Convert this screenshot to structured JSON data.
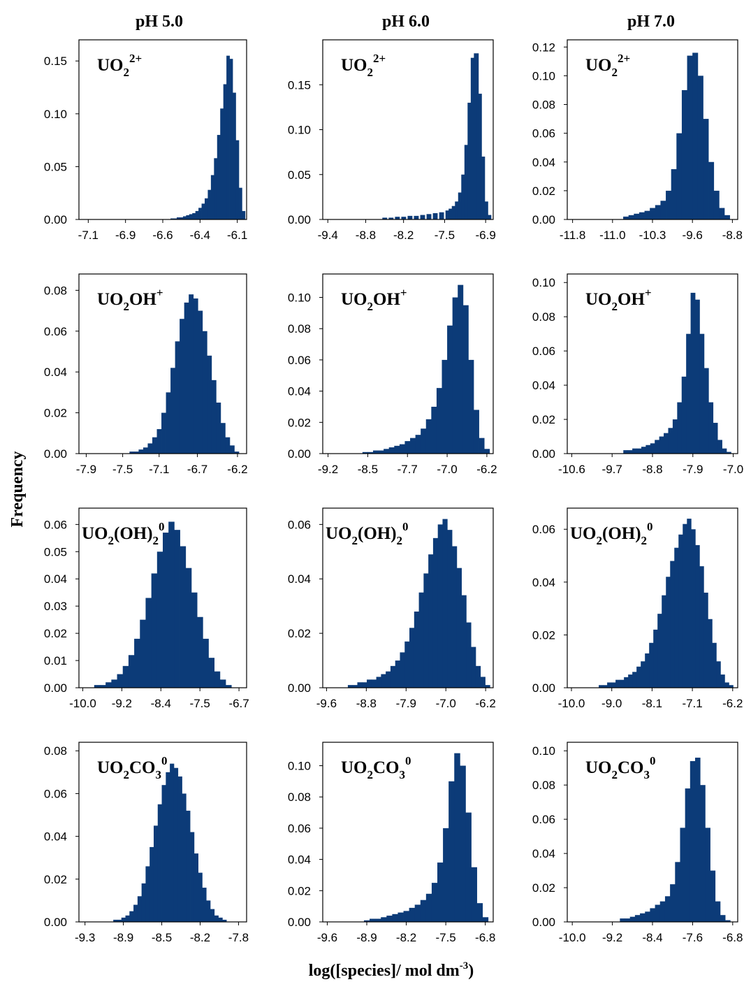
{
  "figure": {
    "column_titles": [
      "pH 5.0",
      "pH 6.0",
      "pH 7.0"
    ],
    "ylabel": "Frequency",
    "xlabel": "log([species]/ mol dm",
    "xlabel_sup": "-3",
    "xlabel_close": ")",
    "bar_color": "#0c3b78"
  },
  "chart_data": [
    {
      "type": "bar",
      "row": 0,
      "col": 0,
      "label": {
        "base": "UO",
        "s1": "2",
        "s2": "2+"
      },
      "xticks": [
        "-7.1",
        "-6.9",
        "-6.6",
        "-6.4",
        "-6.1"
      ],
      "xtick_values": [
        -7.1,
        -6.86,
        -6.62,
        -6.38,
        -6.14
      ],
      "xlim": [
        -7.16,
        -6.08
      ],
      "yticks": [
        "0.00",
        "0.05",
        "0.10",
        "0.15"
      ],
      "ytick_values": [
        0,
        0.05,
        0.1,
        0.15
      ],
      "ylim": [
        0,
        0.17
      ],
      "x": [
        -6.56,
        -6.54,
        -6.52,
        -6.5,
        -6.48,
        -6.46,
        -6.44,
        -6.42,
        -6.4,
        -6.38,
        -6.36,
        -6.34,
        -6.32,
        -6.3,
        -6.28,
        -6.26,
        -6.24,
        -6.22,
        -6.2,
        -6.18,
        -6.16,
        -6.14,
        -6.12,
        -6.1
      ],
      "values": [
        0.001,
        0.001,
        0.002,
        0.002,
        0.003,
        0.004,
        0.005,
        0.006,
        0.008,
        0.011,
        0.015,
        0.02,
        0.028,
        0.042,
        0.058,
        0.08,
        0.105,
        0.128,
        0.155,
        0.152,
        0.12,
        0.075,
        0.03,
        0.008
      ]
    },
    {
      "type": "bar",
      "row": 0,
      "col": 1,
      "label": {
        "base": "UO",
        "s1": "2",
        "s2": "2+"
      },
      "xticks": [
        "-9.4",
        "-8.8",
        "-8.2",
        "-7.5",
        "-6.9"
      ],
      "xtick_values": [
        -9.4,
        -8.8,
        -8.2,
        -7.55,
        -6.9
      ],
      "xlim": [
        -9.48,
        -6.78
      ],
      "yticks": [
        "0.00",
        "0.05",
        "0.10",
        "0.15"
      ],
      "ytick_values": [
        0,
        0.05,
        0.1,
        0.15
      ],
      "ylim": [
        0,
        0.2
      ],
      "x": [
        -8.5,
        -8.4,
        -8.3,
        -8.2,
        -8.1,
        -8.0,
        -7.9,
        -7.8,
        -7.7,
        -7.6,
        -7.5,
        -7.45,
        -7.4,
        -7.35,
        -7.3,
        -7.25,
        -7.2,
        -7.15,
        -7.1,
        -7.05,
        -7.0,
        -6.95,
        -6.9,
        -6.85
      ],
      "values": [
        0.002,
        0.002,
        0.003,
        0.003,
        0.004,
        0.004,
        0.005,
        0.006,
        0.007,
        0.008,
        0.01,
        0.012,
        0.015,
        0.02,
        0.03,
        0.05,
        0.083,
        0.13,
        0.18,
        0.185,
        0.14,
        0.07,
        0.02,
        0.005
      ]
    },
    {
      "type": "bar",
      "row": 0,
      "col": 2,
      "label": {
        "base": "UO",
        "s1": "2",
        "s2": "2+"
      },
      "xticks": [
        "-11.8",
        "-11.0",
        "-10.3",
        "-9.6",
        "-8.8"
      ],
      "xtick_values": [
        -11.8,
        -11.05,
        -10.3,
        -9.55,
        -8.8
      ],
      "xlim": [
        -11.9,
        -8.7
      ],
      "yticks": [
        "0.00",
        "0.02",
        "0.04",
        "0.06",
        "0.08",
        "0.10",
        "0.12"
      ],
      "ytick_values": [
        0,
        0.02,
        0.04,
        0.06,
        0.08,
        0.1,
        0.12
      ],
      "ylim": [
        0,
        0.125
      ],
      "x": [
        -10.8,
        -10.7,
        -10.6,
        -10.5,
        -10.4,
        -10.3,
        -10.2,
        -10.1,
        -10.0,
        -9.9,
        -9.8,
        -9.7,
        -9.6,
        -9.5,
        -9.4,
        -9.3,
        -9.2,
        -9.1,
        -9.0,
        -8.9
      ],
      "values": [
        0.002,
        0.003,
        0.004,
        0.005,
        0.006,
        0.008,
        0.01,
        0.013,
        0.02,
        0.035,
        0.06,
        0.09,
        0.114,
        0.116,
        0.1,
        0.07,
        0.04,
        0.02,
        0.008,
        0.003
      ]
    },
    {
      "type": "bar",
      "row": 1,
      "col": 0,
      "label": {
        "base": "UO",
        "s1": "2",
        "mid": "OH",
        "s2": "+"
      },
      "xticks": [
        "-7.9",
        "-7.5",
        "-7.1",
        "-6.7",
        "-6.2"
      ],
      "xtick_values": [
        -7.9,
        -7.5,
        -7.1,
        -6.68,
        -6.24
      ],
      "xlim": [
        -7.98,
        -6.14
      ],
      "yticks": [
        "0.00",
        "0.02",
        "0.04",
        "0.06",
        "0.08"
      ],
      "ytick_values": [
        0,
        0.02,
        0.04,
        0.06,
        0.08
      ],
      "ylim": [
        0,
        0.088
      ],
      "x": [
        -7.4,
        -7.35,
        -7.3,
        -7.25,
        -7.2,
        -7.15,
        -7.1,
        -7.05,
        -7.0,
        -6.95,
        -6.9,
        -6.85,
        -6.8,
        -6.75,
        -6.7,
        -6.65,
        -6.6,
        -6.55,
        -6.5,
        -6.45,
        -6.4,
        -6.35,
        -6.3,
        -6.25
      ],
      "values": [
        0.001,
        0.001,
        0.002,
        0.003,
        0.005,
        0.008,
        0.012,
        0.02,
        0.03,
        0.042,
        0.055,
        0.066,
        0.074,
        0.078,
        0.076,
        0.07,
        0.06,
        0.048,
        0.036,
        0.025,
        0.015,
        0.008,
        0.004,
        0.001
      ]
    },
    {
      "type": "bar",
      "row": 1,
      "col": 1,
      "label": {
        "base": "UO",
        "s1": "2",
        "mid": "OH",
        "s2": "+"
      },
      "xticks": [
        "-9.2",
        "-8.5",
        "-7.7",
        "-7.0",
        "-6.2"
      ],
      "xtick_values": [
        -9.2,
        -8.45,
        -7.7,
        -6.95,
        -6.2
      ],
      "xlim": [
        -9.3,
        -6.08
      ],
      "yticks": [
        "0.00",
        "0.02",
        "0.04",
        "0.06",
        "0.08",
        "0.10"
      ],
      "ytick_values": [
        0,
        0.02,
        0.04,
        0.06,
        0.08,
        0.1
      ],
      "ylim": [
        0,
        0.115
      ],
      "x": [
        -8.5,
        -8.4,
        -8.3,
        -8.2,
        -8.1,
        -8.0,
        -7.9,
        -7.8,
        -7.7,
        -7.6,
        -7.5,
        -7.4,
        -7.3,
        -7.2,
        -7.1,
        -7.0,
        -6.9,
        -6.8,
        -6.7,
        -6.6,
        -6.5,
        -6.4,
        -6.3,
        -6.2
      ],
      "values": [
        0.001,
        0.001,
        0.002,
        0.002,
        0.003,
        0.004,
        0.005,
        0.006,
        0.008,
        0.01,
        0.012,
        0.016,
        0.022,
        0.03,
        0.042,
        0.06,
        0.082,
        0.1,
        0.108,
        0.095,
        0.06,
        0.028,
        0.01,
        0.003
      ]
    },
    {
      "type": "bar",
      "row": 1,
      "col": 2,
      "label": {
        "base": "UO",
        "s1": "2",
        "mid": "OH",
        "s2": "+"
      },
      "xticks": [
        "-10.6",
        "-9.7",
        "-8.8",
        "-7.9",
        "-7.0"
      ],
      "xtick_values": [
        -10.6,
        -9.7,
        -8.8,
        -7.9,
        -7.0
      ],
      "xlim": [
        -10.7,
        -6.9
      ],
      "yticks": [
        "0.00",
        "0.02",
        "0.04",
        "0.06",
        "0.08",
        "0.10"
      ],
      "ytick_values": [
        0,
        0.02,
        0.04,
        0.06,
        0.08,
        0.1
      ],
      "ylim": [
        0,
        0.105
      ],
      "x": [
        -9.4,
        -9.3,
        -9.2,
        -9.1,
        -9.0,
        -8.9,
        -8.8,
        -8.7,
        -8.6,
        -8.5,
        -8.4,
        -8.3,
        -8.2,
        -8.1,
        -8.0,
        -7.9,
        -7.8,
        -7.7,
        -7.6,
        -7.5,
        -7.4,
        -7.3,
        -7.2,
        -7.1
      ],
      "values": [
        0.002,
        0.002,
        0.003,
        0.003,
        0.004,
        0.005,
        0.006,
        0.008,
        0.01,
        0.012,
        0.015,
        0.02,
        0.03,
        0.045,
        0.07,
        0.094,
        0.09,
        0.07,
        0.05,
        0.03,
        0.018,
        0.008,
        0.003,
        0.001
      ]
    },
    {
      "type": "bar",
      "row": 2,
      "col": 0,
      "label": {
        "base": "UO",
        "s1": "2",
        "mid": "(OH)",
        "s2": "2",
        "s3": "0"
      },
      "xticks": [
        "-10.0",
        "-9.2",
        "-8.4",
        "-7.5",
        "-6.7"
      ],
      "xtick_values": [
        -10.0,
        -9.18,
        -8.36,
        -7.54,
        -6.72
      ],
      "xlim": [
        -10.08,
        -6.56
      ],
      "yticks": [
        "0.00",
        "0.01",
        "0.02",
        "0.03",
        "0.04",
        "0.05",
        "0.06"
      ],
      "ytick_values": [
        0,
        0.01,
        0.02,
        0.03,
        0.04,
        0.05,
        0.06
      ],
      "ylim": [
        0,
        0.066
      ],
      "x": [
        -9.7,
        -9.58,
        -9.46,
        -9.34,
        -9.22,
        -9.1,
        -8.98,
        -8.86,
        -8.74,
        -8.62,
        -8.5,
        -8.38,
        -8.26,
        -8.14,
        -8.02,
        -7.9,
        -7.78,
        -7.66,
        -7.54,
        -7.42,
        -7.3,
        -7.18,
        -7.06,
        -6.94
      ],
      "values": [
        0.001,
        0.001,
        0.002,
        0.003,
        0.005,
        0.008,
        0.012,
        0.018,
        0.025,
        0.033,
        0.042,
        0.05,
        0.057,
        0.061,
        0.058,
        0.052,
        0.044,
        0.035,
        0.026,
        0.018,
        0.011,
        0.006,
        0.003,
        0.001
      ]
    },
    {
      "type": "bar",
      "row": 2,
      "col": 1,
      "label": {
        "base": "UO",
        "s1": "2",
        "mid": "(OH)",
        "s2": "2",
        "s3": "0"
      },
      "xticks": [
        "-9.6",
        "-8.8",
        "-7.9",
        "-7.0",
        "-6.2"
      ],
      "xtick_values": [
        -9.6,
        -8.76,
        -7.92,
        -7.08,
        -6.24
      ],
      "xlim": [
        -9.68,
        -6.08
      ],
      "yticks": [
        "0.00",
        "0.02",
        "0.04",
        "0.06"
      ],
      "ytick_values": [
        0,
        0.02,
        0.04,
        0.06
      ],
      "ylim": [
        0,
        0.066
      ],
      "x": [
        -9.1,
        -9.0,
        -8.9,
        -8.8,
        -8.7,
        -8.6,
        -8.5,
        -8.4,
        -8.3,
        -8.2,
        -8.1,
        -8.0,
        -7.9,
        -7.8,
        -7.7,
        -7.6,
        -7.5,
        -7.4,
        -7.3,
        -7.2,
        -7.1,
        -7.0,
        -6.9,
        -6.8,
        -6.7,
        -6.6,
        -6.5,
        -6.4,
        -6.3,
        -6.2
      ],
      "values": [
        0.001,
        0.001,
        0.002,
        0.002,
        0.003,
        0.003,
        0.004,
        0.005,
        0.006,
        0.008,
        0.01,
        0.013,
        0.017,
        0.022,
        0.028,
        0.035,
        0.042,
        0.049,
        0.055,
        0.06,
        0.062,
        0.058,
        0.052,
        0.044,
        0.034,
        0.024,
        0.015,
        0.008,
        0.004,
        0.001
      ]
    },
    {
      "type": "bar",
      "row": 2,
      "col": 2,
      "label": {
        "base": "UO",
        "s1": "2",
        "mid": "(OH)",
        "s2": "2",
        "s3": "0"
      },
      "xticks": [
        "-10.0",
        "-9.0",
        "-8.1",
        "-7.1",
        "-6.2"
      ],
      "xtick_values": [
        -10.0,
        -9.04,
        -8.08,
        -7.12,
        -6.16
      ],
      "xlim": [
        -10.1,
        -6.04
      ],
      "yticks": [
        "0.00",
        "0.02",
        "0.04",
        "0.06"
      ],
      "ytick_values": [
        0,
        0.02,
        0.04,
        0.06
      ],
      "ylim": [
        0,
        0.068
      ],
      "x": [
        -9.3,
        -9.2,
        -9.1,
        -9.0,
        -8.9,
        -8.8,
        -8.7,
        -8.6,
        -8.5,
        -8.4,
        -8.3,
        -8.2,
        -8.1,
        -8.0,
        -7.9,
        -7.8,
        -7.7,
        -7.6,
        -7.5,
        -7.4,
        -7.3,
        -7.2,
        -7.1,
        -7.0,
        -6.9,
        -6.8,
        -6.7,
        -6.6,
        -6.5,
        -6.4,
        -6.3,
        -6.2
      ],
      "values": [
        0.001,
        0.001,
        0.002,
        0.002,
        0.003,
        0.003,
        0.004,
        0.005,
        0.006,
        0.008,
        0.01,
        0.013,
        0.017,
        0.022,
        0.028,
        0.035,
        0.042,
        0.048,
        0.053,
        0.058,
        0.062,
        0.064,
        0.06,
        0.054,
        0.046,
        0.036,
        0.026,
        0.017,
        0.01,
        0.005,
        0.002,
        0.001
      ]
    },
    {
      "type": "bar",
      "row": 3,
      "col": 0,
      "label": {
        "base": "UO",
        "s1": "2",
        "mid": "CO",
        "s2": "3",
        "s3": "0"
      },
      "xticks": [
        "-9.3",
        "-8.9",
        "-8.5",
        "-8.2",
        "-7.8"
      ],
      "xtick_values": [
        -9.3,
        -8.92,
        -8.54,
        -8.16,
        -7.78
      ],
      "xlim": [
        -9.36,
        -7.7
      ],
      "yticks": [
        "0.00",
        "0.02",
        "0.04",
        "0.06",
        "0.08"
      ],
      "ytick_values": [
        0,
        0.02,
        0.04,
        0.06,
        0.08
      ],
      "ylim": [
        0,
        0.084
      ],
      "x": [
        -9.0,
        -8.96,
        -8.92,
        -8.88,
        -8.84,
        -8.8,
        -8.76,
        -8.72,
        -8.68,
        -8.64,
        -8.6,
        -8.56,
        -8.52,
        -8.48,
        -8.44,
        -8.4,
        -8.36,
        -8.32,
        -8.28,
        -8.24,
        -8.2,
        -8.16,
        -8.12,
        -8.08,
        -8.04,
        -8.0,
        -7.96,
        -7.92
      ],
      "values": [
        0.001,
        0.001,
        0.002,
        0.003,
        0.005,
        0.008,
        0.012,
        0.018,
        0.026,
        0.035,
        0.045,
        0.055,
        0.064,
        0.07,
        0.074,
        0.072,
        0.068,
        0.06,
        0.052,
        0.042,
        0.032,
        0.023,
        0.016,
        0.01,
        0.006,
        0.003,
        0.002,
        0.001
      ]
    },
    {
      "type": "bar",
      "row": 3,
      "col": 1,
      "label": {
        "base": "UO",
        "s1": "2",
        "mid": "CO",
        "s2": "3",
        "s3": "0"
      },
      "xticks": [
        "-9.6",
        "-8.9",
        "-8.2",
        "-7.5",
        "-6.8"
      ],
      "xtick_values": [
        -9.6,
        -8.9,
        -8.2,
        -7.5,
        -6.8
      ],
      "xlim": [
        -9.68,
        -6.66
      ],
      "yticks": [
        "0.00",
        "0.02",
        "0.04",
        "0.06",
        "0.08",
        "0.10"
      ],
      "ytick_values": [
        0,
        0.02,
        0.04,
        0.06,
        0.08,
        0.1
      ],
      "ylim": [
        0,
        0.115
      ],
      "x": [
        -8.9,
        -8.8,
        -8.7,
        -8.6,
        -8.5,
        -8.4,
        -8.3,
        -8.2,
        -8.1,
        -8.0,
        -7.9,
        -7.8,
        -7.7,
        -7.6,
        -7.5,
        -7.4,
        -7.3,
        -7.2,
        -7.1,
        -7.0,
        -6.9,
        -6.8
      ],
      "values": [
        0.001,
        0.002,
        0.002,
        0.003,
        0.004,
        0.005,
        0.006,
        0.007,
        0.009,
        0.011,
        0.014,
        0.018,
        0.025,
        0.038,
        0.06,
        0.09,
        0.108,
        0.1,
        0.07,
        0.035,
        0.012,
        0.003
      ]
    },
    {
      "type": "bar",
      "row": 3,
      "col": 2,
      "label": {
        "base": "UO",
        "s1": "2",
        "mid": "CO",
        "s2": "3",
        "s3": "0"
      },
      "xticks": [
        "-10.0",
        "-9.2",
        "-8.4",
        "-7.6",
        "-6.8"
      ],
      "xtick_values": [
        -10.0,
        -9.2,
        -8.4,
        -7.6,
        -6.8
      ],
      "xlim": [
        -10.1,
        -6.7
      ],
      "yticks": [
        "0.00",
        "0.02",
        "0.04",
        "0.06",
        "0.08",
        "0.10"
      ],
      "ytick_values": [
        0,
        0.02,
        0.04,
        0.06,
        0.08,
        0.1
      ],
      "ylim": [
        0,
        0.105
      ],
      "x": [
        -9.0,
        -8.9,
        -8.8,
        -8.7,
        -8.6,
        -8.5,
        -8.4,
        -8.3,
        -8.2,
        -8.1,
        -8.0,
        -7.9,
        -7.8,
        -7.7,
        -7.6,
        -7.5,
        -7.4,
        -7.3,
        -7.2,
        -7.1,
        -7.0,
        -6.9
      ],
      "values": [
        0.002,
        0.002,
        0.003,
        0.004,
        0.005,
        0.006,
        0.008,
        0.01,
        0.012,
        0.015,
        0.022,
        0.035,
        0.055,
        0.078,
        0.094,
        0.096,
        0.08,
        0.055,
        0.03,
        0.012,
        0.004,
        0.001
      ]
    }
  ]
}
